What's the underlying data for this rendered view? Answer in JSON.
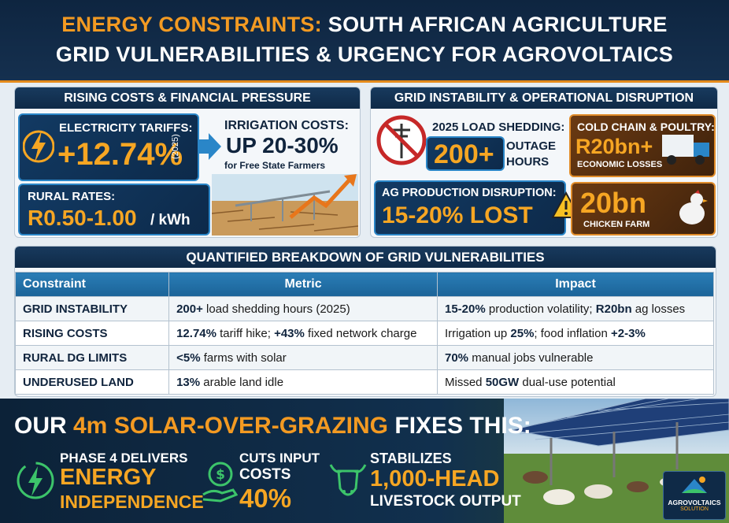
{
  "header": {
    "title_highlight": "ENERGY CONSTRAINTS:",
    "title_rest": " SOUTH AFRICAN AGRICULTURE",
    "subtitle": "GRID VULNERABILITIES & URGENCY FOR AGROVOLTAICS"
  },
  "costs_panel": {
    "title": "RISING COSTS & FINANCIAL PRESSURE",
    "tariffs": {
      "label": "ELECTRICITY TARIFFS:",
      "value": "+12.74%",
      "year": "(2025)"
    },
    "irrigation": {
      "label": "IRRIGATION COSTS:",
      "value": "UP 20-30%",
      "note": "for Free State Farmers"
    },
    "rural": {
      "label": "RURAL RATES:",
      "value": "R0.50-1.00",
      "unit": "/ kWh"
    }
  },
  "grid_panel": {
    "title": "GRID INSTABILITY & OPERATIONAL DISRUPTION",
    "load_shedding": {
      "label": "2025 LOAD SHEDDING:",
      "value": "200+",
      "unit_1": "OUTAGE",
      "unit_2": "HOURS"
    },
    "cold_chain": {
      "label": "COLD CHAIN & POULTRY:",
      "value": "R20bn+",
      "note": "ECONOMIC LOSSES"
    },
    "production": {
      "label": "AG PRODUCTION DISRUPTION:",
      "value": "15-20% LOST"
    },
    "chicken": {
      "value": "20bn",
      "note": "CHICKEN FARM"
    }
  },
  "table": {
    "title": "QUANTIFIED BREAKDOWN OF GRID VULNERABILITIES",
    "headers": [
      "Constraint",
      "Metric",
      "Impact"
    ],
    "rows": [
      [
        "GRID INSTABILITY",
        [
          {
            "text": "200+",
            "bold": true
          },
          {
            "text": " load shedding hours (2025)",
            "bold": false
          }
        ],
        [
          {
            "text": "15-20%",
            "bold": true
          },
          {
            "text": " production volatility; ",
            "bold": false
          },
          {
            "text": "R20bn",
            "bold": true
          },
          {
            "text": " ag losses",
            "bold": false
          }
        ]
      ],
      [
        "RISING COSTS",
        [
          {
            "text": "12.74%",
            "bold": true
          },
          {
            "text": " tariff hike; ",
            "bold": false
          },
          {
            "text": "+43%",
            "bold": true
          },
          {
            "text": " fixed network charge",
            "bold": false
          }
        ],
        [
          {
            "text": "Irrigation up ",
            "bold": false
          },
          {
            "text": "25%",
            "bold": true
          },
          {
            "text": "; food inflation ",
            "bold": false
          },
          {
            "text": "+2-3%",
            "bold": true
          }
        ]
      ],
      [
        "RURAL DG LIMITS",
        [
          {
            "text": "<5%",
            "bold": true
          },
          {
            "text": " farms with solar",
            "bold": false
          }
        ],
        [
          {
            "text": "70%",
            "bold": true
          },
          {
            "text": " manual jobs vulnerable",
            "bold": false
          }
        ]
      ],
      [
        "UNDERUSED LAND",
        [
          {
            "text": "13%",
            "bold": true
          },
          {
            "text": " arable land idle",
            "bold": false
          }
        ],
        [
          {
            "text": "Missed ",
            "bold": false
          },
          {
            "text": "50GW",
            "bold": true
          },
          {
            "text": " dual-use potential",
            "bold": false
          }
        ]
      ]
    ]
  },
  "solution": {
    "title_start": "OUR ",
    "title_highlight": "4m SOLAR-OVER-GRAZING",
    "title_end": " FIXES THIS:",
    "items": [
      {
        "line_1": "PHASE 4 DELIVERS",
        "line_2": "ENERGY",
        "line_3": "INDEPENDENCE"
      },
      {
        "line_1": "CUTS INPUT",
        "line_2": "COSTS",
        "line_3": "40%"
      },
      {
        "line_1": "STABILIZES",
        "line_2": "1,000-HEAD",
        "line_3": "LIVESTOCK OUTPUT"
      }
    ],
    "logo": {
      "name": "AGROVOLTAICS",
      "tagline": "SOLUTION"
    }
  }
}
